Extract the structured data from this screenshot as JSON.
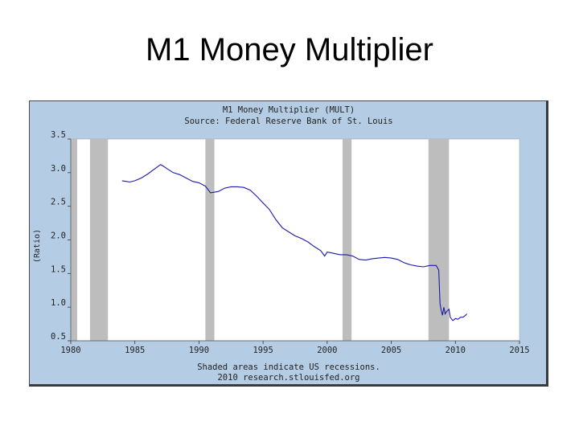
{
  "slide": {
    "title": "M1 Money Multiplier"
  },
  "chart_data": {
    "type": "line",
    "title": "M1 Money Multiplier (MULT)",
    "subtitle": "Source: Federal Reserve Bank of St. Louis",
    "ylabel": "(Ratio)",
    "xlabel": "",
    "footer": [
      "Shaded areas indicate US recessions.",
      "2010 research.stlouisfed.org"
    ],
    "xlim": [
      1980,
      2015
    ],
    "ylim": [
      0.5,
      3.5
    ],
    "x_ticks": [
      1980,
      1985,
      1990,
      1995,
      2000,
      2005,
      2010,
      2015
    ],
    "x_tick_labels": [
      "1980",
      "1985",
      "1990",
      "1995",
      "2000",
      "2005",
      "2010",
      "2015"
    ],
    "y_ticks": [
      0.5,
      1.0,
      1.5,
      2.0,
      2.5,
      3.0,
      3.5
    ],
    "y_tick_labels": [
      "0.5",
      "1.0",
      "1.5",
      "2.0",
      "2.5",
      "3.0",
      "3.5"
    ],
    "recessions": [
      [
        1980.0,
        1980.5
      ],
      [
        1981.5,
        1982.9
      ],
      [
        1990.5,
        1991.2
      ],
      [
        2001.2,
        2001.9
      ],
      [
        2007.9,
        2009.5
      ]
    ],
    "grid": false,
    "line_color": "#1a1aa8",
    "recession_color": "#bdbdbd",
    "background_color": "#b5cde4",
    "plot_color": "#ffffff",
    "series": [
      {
        "x": [
          1984.0,
          1984.3,
          1984.6,
          1985.0,
          1985.5,
          1986.0,
          1986.5,
          1987.0,
          1987.2,
          1987.5,
          1988.0,
          1988.5,
          1989.0,
          1989.5,
          1990.0,
          1990.5,
          1990.9,
          1991.5,
          1992.0,
          1992.5,
          1993.0,
          1993.5,
          1994.0,
          1994.5,
          1995.0,
          1995.5,
          1996.0,
          1996.5,
          1997.0,
          1997.5,
          1998.0,
          1998.5,
          1999.0,
          1999.5,
          1999.8,
          2000.0,
          2000.5,
          2001.0,
          2001.5,
          2002.0,
          2002.5,
          2003.0,
          2003.5,
          2004.0,
          2004.5,
          2005.0,
          2005.5,
          2006.0,
          2006.5,
          2007.0,
          2007.5,
          2008.0,
          2008.5,
          2008.7,
          2008.8,
          2008.9,
          2009.0,
          2009.1,
          2009.2,
          2009.3,
          2009.4,
          2009.5,
          2009.6,
          2009.8,
          2010.0,
          2010.2,
          2010.4,
          2010.6,
          2010.8,
          2010.9
        ],
        "y": [
          2.88,
          2.87,
          2.86,
          2.88,
          2.92,
          2.98,
          3.05,
          3.12,
          3.1,
          3.06,
          3.0,
          2.97,
          2.92,
          2.87,
          2.85,
          2.8,
          2.7,
          2.72,
          2.77,
          2.79,
          2.79,
          2.78,
          2.74,
          2.65,
          2.55,
          2.45,
          2.3,
          2.18,
          2.12,
          2.06,
          2.02,
          1.97,
          1.9,
          1.84,
          1.76,
          1.82,
          1.8,
          1.78,
          1.78,
          1.76,
          1.71,
          1.7,
          1.72,
          1.73,
          1.74,
          1.73,
          1.71,
          1.66,
          1.63,
          1.61,
          1.6,
          1.62,
          1.62,
          1.55,
          1.05,
          0.95,
          0.88,
          1.0,
          0.9,
          0.93,
          0.95,
          0.97,
          0.85,
          0.8,
          0.83,
          0.82,
          0.85,
          0.85,
          0.88,
          0.9
        ]
      }
    ]
  }
}
